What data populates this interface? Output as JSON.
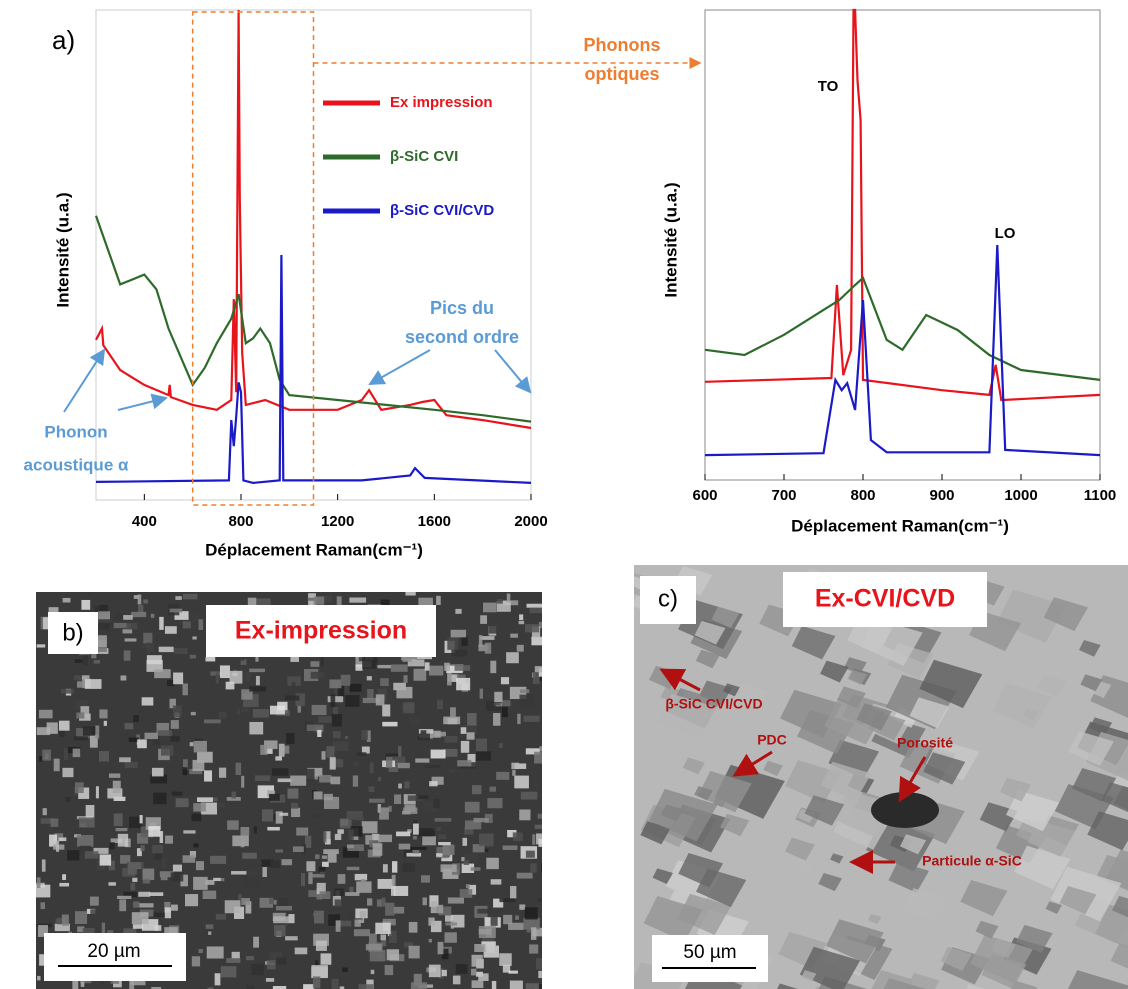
{
  "chart_data": [
    {
      "type": "line",
      "xlabel": "Déplacement Raman(cm⁻¹)",
      "ylabel": "Intensité (u.a.)",
      "xlim": [
        200,
        2000
      ],
      "xticks": [
        400,
        800,
        1200,
        1600,
        2000
      ],
      "ylim": [
        0,
        100
      ],
      "legend": "upper right",
      "annotations": [
        "a)",
        "Phonons",
        "optiques",
        "Pics du",
        "second ordre",
        "Phonon",
        "acoustique α"
      ],
      "series": [
        {
          "name": "Ex impression",
          "color": "#e8141c",
          "x": [
            200,
            225,
            230,
            300,
            400,
            500,
            505,
            510,
            600,
            700,
            760,
            770,
            780,
            790,
            795,
            805,
            820,
            900,
            1000,
            1200,
            1300,
            1330,
            1380,
            1500,
            1550,
            1600,
            1650,
            1800,
            2000
          ],
          "values": [
            32.7,
            35,
            31.6,
            26.5,
            23.5,
            21.4,
            23.5,
            21,
            19.4,
            18.4,
            20.4,
            41,
            22,
            100,
            61,
            30,
            19.4,
            20.4,
            18.4,
            18.4,
            20.4,
            22.4,
            18.4,
            19.4,
            20,
            20.4,
            17.3,
            16.3,
            14.7
          ]
        },
        {
          "name": "β-SiC CVI",
          "color": "#2e6b2a",
          "x": [
            200,
            300,
            400,
            450,
            500,
            600,
            650,
            700,
            760,
            790,
            820,
            850,
            880,
            920,
            960,
            1000,
            1200,
            1400,
            1600,
            1800,
            2000
          ],
          "values": [
            58,
            44,
            46,
            43,
            35,
            23.5,
            27,
            32,
            37,
            42,
            32,
            33,
            35,
            32,
            24.5,
            21.4,
            20.4,
            19.4,
            18.4,
            17.3,
            16
          ]
        },
        {
          "name": "β-SiC CVI/CVD",
          "color": "#1a1ac8",
          "x": [
            200,
            750,
            760,
            770,
            780,
            790,
            800,
            810,
            850,
            960,
            967,
            975,
            1300,
            1500,
            1520,
            1560,
            2000
          ],
          "values": [
            3.7,
            4,
            16.3,
            11,
            17,
            24,
            22,
            4,
            3.5,
            4,
            50,
            4,
            4,
            5,
            6.5,
            4.5,
            3.5
          ]
        }
      ]
    },
    {
      "type": "line",
      "xlabel": "Déplacement Raman(cm⁻¹)",
      "ylabel": "Intensité (u.a.)",
      "xlim": [
        600,
        1100
      ],
      "xticks": [
        600,
        700,
        800,
        900,
        1000,
        1100
      ],
      "ylim": [
        0,
        100
      ],
      "annotations": [
        "TO",
        "LO"
      ],
      "series": [
        {
          "color": "#e8141c",
          "x": [
            600,
            760,
            767,
            775,
            785,
            788,
            790,
            793,
            797,
            800,
            900,
            960,
            968,
            975,
            1100
          ],
          "values": [
            20.9,
            21.7,
            41.5,
            22.3,
            27.7,
            100,
            100,
            85,
            76.6,
            21.3,
            19.1,
            18.1,
            24.5,
            17,
            18.1
          ]
        },
        {
          "color": "#2e6b2a",
          "x": [
            600,
            650,
            700,
            750,
            770,
            790,
            800,
            830,
            850,
            880,
            920,
            960,
            1000,
            1100
          ],
          "values": [
            27.7,
            26.6,
            30.9,
            36.2,
            38.3,
            41.5,
            43,
            29.8,
            27.7,
            35.1,
            31.9,
            26.6,
            23.4,
            21.3
          ]
        },
        {
          "color": "#1a1ac8",
          "x": [
            600,
            750,
            765,
            773,
            780,
            790,
            800,
            810,
            830,
            960,
            970,
            980,
            1100
          ],
          "values": [
            5.3,
            5.7,
            21.3,
            19.1,
            20.6,
            14.9,
            38.3,
            8.5,
            5.9,
            5.9,
            50,
            6.4,
            5.3
          ]
        }
      ]
    }
  ],
  "panels": [
    {
      "tag": "b)",
      "title": "Ex-impression",
      "scale": "20 µm"
    },
    {
      "tag": "c)",
      "title": "Ex-CVI/CVD",
      "scale": "50 µm",
      "labels": [
        "β-SiC CVI/CVD",
        "PDC",
        "Porosité",
        "Particule α-SiC"
      ]
    }
  ]
}
